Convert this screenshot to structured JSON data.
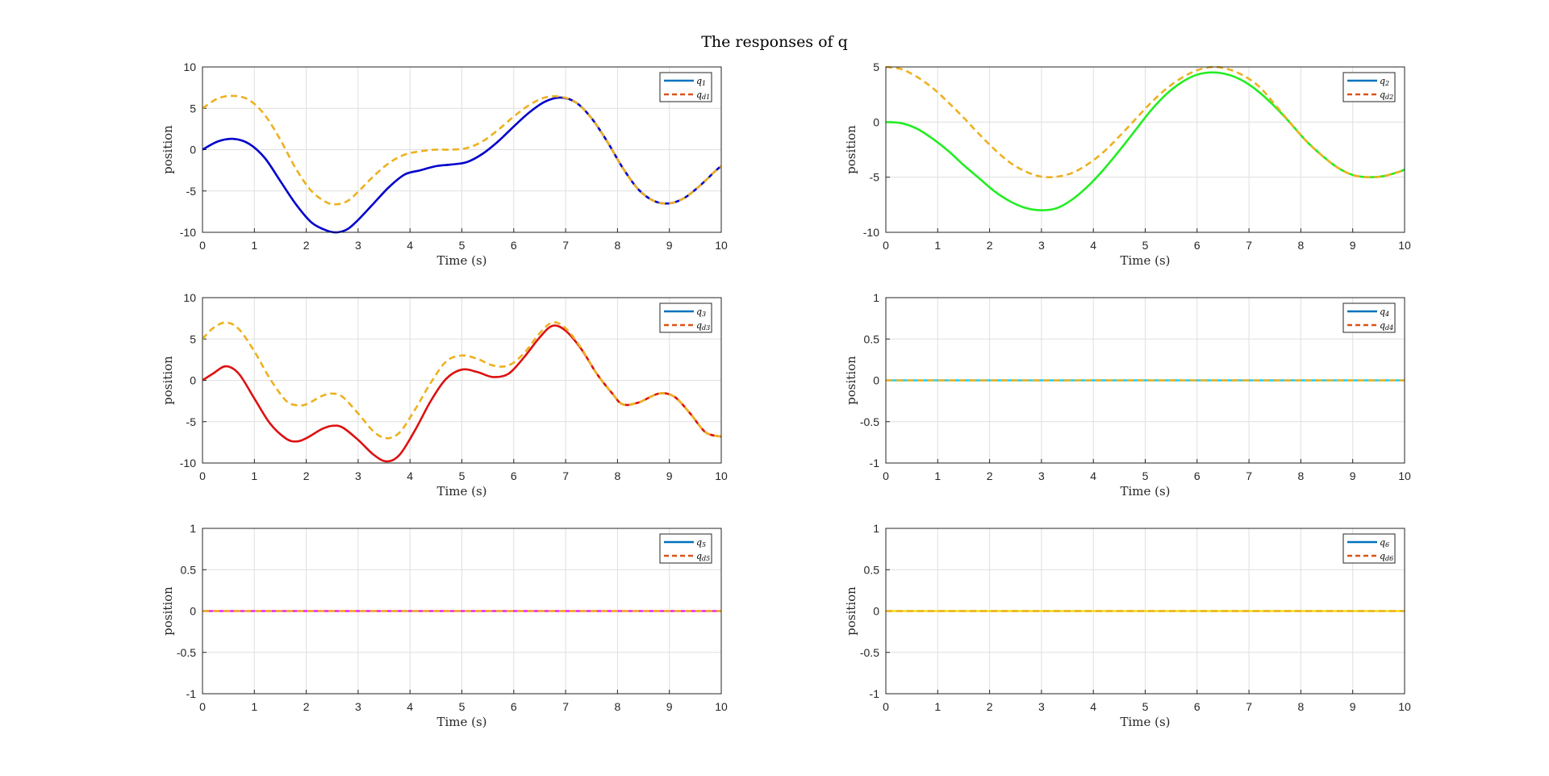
{
  "figure": {
    "title": "The responses of q"
  },
  "chart_data": [
    {
      "type": "line",
      "xlabel": "Time (s)",
      "ylabel": "position",
      "xlim": [
        0,
        10
      ],
      "ylim": [
        -10,
        10
      ],
      "xticks": [
        "0",
        "1",
        "2",
        "3",
        "4",
        "5",
        "6",
        "7",
        "8",
        "9",
        "10"
      ],
      "yticks": [
        "-10",
        "-5",
        "0",
        "5",
        "10"
      ],
      "grid": true,
      "legend_position": "top-right",
      "legend": [
        {
          "label": "q1",
          "style": "solid",
          "color": "#0072BD"
        },
        {
          "label": "qd1",
          "style": "dashed",
          "color": "#D95319"
        }
      ],
      "series": [
        {
          "name": "q1",
          "color": "#0000CC",
          "style": "solid",
          "x": [
            0,
            0.3,
            0.6,
            0.9,
            1.2,
            1.5,
            1.8,
            2.1,
            2.4,
            2.6,
            2.8,
            3.0,
            3.3,
            3.6,
            3.9,
            4.2,
            4.5,
            4.8,
            5.1,
            5.4,
            5.7,
            6.0,
            6.3,
            6.6,
            6.9,
            7.2,
            7.5,
            7.8,
            8.1,
            8.4,
            8.7,
            9.0,
            9.3,
            9.6,
            9.9,
            10.0
          ],
          "y": [
            0,
            1.0,
            1.3,
            0.7,
            -1.0,
            -3.8,
            -6.6,
            -8.8,
            -9.8,
            -10.0,
            -9.6,
            -8.5,
            -6.5,
            -4.5,
            -3.0,
            -2.5,
            -2.0,
            -1.8,
            -1.5,
            -0.5,
            1.0,
            2.8,
            4.5,
            5.8,
            6.3,
            5.7,
            3.8,
            1.0,
            -2.2,
            -4.8,
            -6.2,
            -6.5,
            -5.8,
            -4.3,
            -2.5,
            -2.0
          ]
        },
        {
          "name": "qd1",
          "color": "#EDB120",
          "style": "dashed",
          "x": [
            0,
            0.3,
            0.6,
            0.9,
            1.2,
            1.5,
            1.8,
            2.1,
            2.4,
            2.6,
            2.8,
            3.0,
            3.3,
            3.6,
            3.9,
            4.2,
            4.5,
            4.8,
            5.1,
            5.4,
            5.7,
            6.0,
            6.3,
            6.6,
            6.9,
            7.2,
            7.5,
            7.8,
            8.1,
            8.4,
            8.7,
            9.0,
            9.3,
            9.6,
            9.9,
            10.0
          ],
          "y": [
            5.0,
            6.2,
            6.5,
            6.0,
            4.2,
            1.2,
            -2.3,
            -5.0,
            -6.4,
            -6.6,
            -6.2,
            -5.1,
            -3.2,
            -1.6,
            -0.6,
            -0.2,
            0,
            0,
            0.2,
            1.0,
            2.4,
            4.0,
            5.4,
            6.3,
            6.4,
            5.7,
            3.8,
            1.0,
            -2.2,
            -4.8,
            -6.2,
            -6.5,
            -5.8,
            -4.3,
            -2.5,
            -2.0
          ]
        }
      ]
    },
    {
      "type": "line",
      "xlabel": "Time (s)",
      "ylabel": "position",
      "xlim": [
        0,
        10
      ],
      "ylim": [
        -10,
        5
      ],
      "xticks": [
        "0",
        "1",
        "2",
        "3",
        "4",
        "5",
        "6",
        "7",
        "8",
        "9",
        "10"
      ],
      "yticks": [
        "-10",
        "-5",
        "0",
        "5"
      ],
      "grid": true,
      "legend_position": "top-right",
      "legend": [
        {
          "label": "q2",
          "style": "solid",
          "color": "#0072BD"
        },
        {
          "label": "qd2",
          "style": "dashed",
          "color": "#D95319"
        }
      ],
      "series": [
        {
          "name": "q2",
          "color": "#22EE22",
          "style": "solid",
          "x": [
            0,
            0.3,
            0.6,
            0.9,
            1.2,
            1.5,
            1.8,
            2.1,
            2.4,
            2.7,
            3.0,
            3.3,
            3.6,
            3.9,
            4.2,
            4.5,
            4.8,
            5.1,
            5.4,
            5.7,
            6.0,
            6.3,
            6.6,
            6.9,
            7.2,
            7.5,
            7.8,
            8.1,
            8.4,
            8.7,
            9.0,
            9.3,
            9.6,
            9.9,
            10.0
          ],
          "y": [
            0,
            -0.1,
            -0.6,
            -1.5,
            -2.6,
            -3.9,
            -5.1,
            -6.3,
            -7.2,
            -7.8,
            -8.0,
            -7.8,
            -7.0,
            -5.8,
            -4.3,
            -2.6,
            -0.8,
            1.0,
            2.5,
            3.6,
            4.3,
            4.5,
            4.3,
            3.7,
            2.7,
            1.4,
            -0.1,
            -1.7,
            -3.0,
            -4.1,
            -4.8,
            -5.0,
            -4.9,
            -4.5,
            -4.3
          ]
        },
        {
          "name": "qd2",
          "color": "#EDB120",
          "style": "dashed",
          "x": [
            0,
            0.3,
            0.6,
            0.9,
            1.2,
            1.5,
            1.8,
            2.1,
            2.4,
            2.7,
            3.0,
            3.3,
            3.6,
            3.9,
            4.2,
            4.5,
            4.8,
            5.1,
            5.4,
            5.7,
            6.0,
            6.3,
            6.6,
            6.9,
            7.2,
            7.5,
            7.8,
            8.1,
            8.4,
            8.7,
            9.0,
            9.3,
            9.6,
            9.9,
            10.0
          ],
          "y": [
            5.0,
            4.8,
            4.1,
            3.1,
            1.8,
            0.4,
            -1.1,
            -2.5,
            -3.7,
            -4.5,
            -4.95,
            -4.95,
            -4.6,
            -3.8,
            -2.7,
            -1.3,
            0.2,
            1.7,
            3.0,
            4.0,
            4.7,
            5.0,
            4.8,
            4.2,
            3.2,
            1.6,
            -0.1,
            -1.7,
            -3.0,
            -4.1,
            -4.8,
            -5.0,
            -4.9,
            -4.5,
            -4.3
          ]
        }
      ]
    },
    {
      "type": "line",
      "xlabel": "Time (s)",
      "ylabel": "position",
      "xlim": [
        0,
        10
      ],
      "ylim": [
        -10,
        10
      ],
      "xticks": [
        "0",
        "1",
        "2",
        "3",
        "4",
        "5",
        "6",
        "7",
        "8",
        "9",
        "10"
      ],
      "yticks": [
        "-10",
        "-5",
        "0",
        "5",
        "10"
      ],
      "grid": true,
      "legend_position": "top-right",
      "legend": [
        {
          "label": "q3",
          "style": "solid",
          "color": "#0072BD"
        },
        {
          "label": "qd3",
          "style": "dashed",
          "color": "#D95319"
        }
      ],
      "series": [
        {
          "name": "q3",
          "color": "#DD1111",
          "style": "solid",
          "x": [
            0,
            0.2,
            0.45,
            0.7,
            1.0,
            1.3,
            1.6,
            1.8,
            2.0,
            2.3,
            2.5,
            2.7,
            3.0,
            3.3,
            3.55,
            3.8,
            4.1,
            4.4,
            4.7,
            5.0,
            5.3,
            5.6,
            5.9,
            6.2,
            6.5,
            6.75,
            7.0,
            7.3,
            7.6,
            7.9,
            8.1,
            8.4,
            8.8,
            9.1,
            9.4,
            9.7,
            10.0
          ],
          "y": [
            0,
            0.8,
            1.7,
            0.8,
            -2.2,
            -5.2,
            -7.0,
            -7.4,
            -7.0,
            -5.9,
            -5.5,
            -5.7,
            -7.2,
            -9.0,
            -9.8,
            -9.0,
            -6.0,
            -2.5,
            0.2,
            1.3,
            1.0,
            0.4,
            0.8,
            2.8,
            5.2,
            6.6,
            6.0,
            3.8,
            0.8,
            -1.6,
            -2.9,
            -2.7,
            -1.6,
            -2.0,
            -4.0,
            -6.3,
            -6.8
          ]
        },
        {
          "name": "qd3",
          "color": "#EDB120",
          "style": "dashed",
          "x": [
            0,
            0.2,
            0.45,
            0.7,
            1.0,
            1.3,
            1.6,
            1.8,
            2.0,
            2.3,
            2.5,
            2.7,
            3.0,
            3.3,
            3.55,
            3.8,
            4.1,
            4.4,
            4.7,
            5.0,
            5.3,
            5.6,
            5.9,
            6.2,
            6.5,
            6.75,
            7.0,
            7.3,
            7.6,
            7.9,
            8.1,
            8.4,
            8.8,
            9.1,
            9.4,
            9.7,
            10.0
          ],
          "y": [
            5.0,
            6.3,
            7.0,
            6.2,
            3.5,
            0.2,
            -2.4,
            -3.0,
            -2.9,
            -1.9,
            -1.6,
            -2.0,
            -4.0,
            -6.2,
            -7.0,
            -6.3,
            -3.5,
            -0.3,
            2.3,
            3.0,
            2.6,
            1.8,
            1.8,
            3.3,
            5.7,
            7.0,
            6.3,
            3.9,
            0.8,
            -1.6,
            -2.9,
            -2.7,
            -1.6,
            -2.0,
            -4.0,
            -6.3,
            -6.8
          ]
        }
      ]
    },
    {
      "type": "line",
      "xlabel": "Time (s)",
      "ylabel": "position",
      "xlim": [
        0,
        10
      ],
      "ylim": [
        -1,
        1
      ],
      "xticks": [
        "0",
        "1",
        "2",
        "3",
        "4",
        "5",
        "6",
        "7",
        "8",
        "9",
        "10"
      ],
      "yticks": [
        "-1",
        "-0.5",
        "0",
        "0.5",
        "1"
      ],
      "grid": true,
      "legend_position": "top-right",
      "legend": [
        {
          "label": "q4",
          "style": "solid",
          "color": "#0072BD"
        },
        {
          "label": "qd4",
          "style": "dashed",
          "color": "#D95319"
        }
      ],
      "series": [
        {
          "name": "q4",
          "color": "#22CCEE",
          "style": "solid",
          "x": [
            0,
            10
          ],
          "y": [
            0,
            0
          ]
        },
        {
          "name": "qd4",
          "color": "#EDB120",
          "style": "dashed",
          "x": [
            0,
            10
          ],
          "y": [
            0,
            0
          ]
        }
      ]
    },
    {
      "type": "line",
      "xlabel": "Time (s)",
      "ylabel": "position",
      "xlim": [
        0,
        10
      ],
      "ylim": [
        -1,
        1
      ],
      "xticks": [
        "0",
        "1",
        "2",
        "3",
        "4",
        "5",
        "6",
        "7",
        "8",
        "9",
        "10"
      ],
      "yticks": [
        "-1",
        "-0.5",
        "0",
        "0.5",
        "1"
      ],
      "grid": true,
      "legend_position": "top-right",
      "legend": [
        {
          "label": "q5",
          "style": "solid",
          "color": "#0072BD"
        },
        {
          "label": "qd5",
          "style": "dashed",
          "color": "#D95319"
        }
      ],
      "series": [
        {
          "name": "q5",
          "color": "#EE22EE",
          "style": "solid",
          "x": [
            0,
            10
          ],
          "y": [
            0,
            0
          ]
        },
        {
          "name": "qd5",
          "color": "#EDB120",
          "style": "dashed",
          "x": [
            0,
            10
          ],
          "y": [
            0,
            0
          ]
        }
      ]
    },
    {
      "type": "line",
      "xlabel": "Time (s)",
      "ylabel": "position",
      "xlim": [
        0,
        10
      ],
      "ylim": [
        -1,
        1
      ],
      "xticks": [
        "0",
        "1",
        "2",
        "3",
        "4",
        "5",
        "6",
        "7",
        "8",
        "9",
        "10"
      ],
      "yticks": [
        "-1",
        "-0.5",
        "0",
        "0.5",
        "1"
      ],
      "grid": true,
      "legend_position": "top-right",
      "legend": [
        {
          "label": "q6",
          "style": "solid",
          "color": "#0072BD"
        },
        {
          "label": "qd6",
          "style": "dashed",
          "color": "#D95319"
        }
      ],
      "series": [
        {
          "name": "q6",
          "color": "#EEDD11",
          "style": "solid",
          "x": [
            0,
            10
          ],
          "y": [
            0,
            0
          ]
        },
        {
          "name": "qd6",
          "color": "#EDB120",
          "style": "dashed",
          "x": [
            0,
            10
          ],
          "y": [
            0,
            0
          ]
        }
      ]
    }
  ]
}
